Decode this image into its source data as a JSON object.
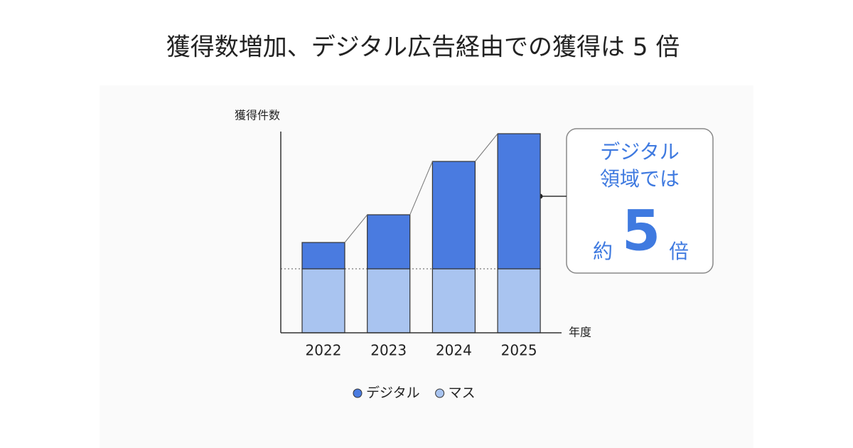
{
  "chart_data": {
    "type": "bar",
    "stacked": true,
    "title": "獲得数増加、デジタル広告経由での獲得は 5 倍",
    "y_label": "獲得件数",
    "x_label": "年度",
    "categories": [
      "2022",
      "2023",
      "2024",
      "2025"
    ],
    "series": [
      {
        "name": "マス",
        "color": "#a9c4f0",
        "values": [
          90,
          90,
          90,
          90
        ]
      },
      {
        "name": "デジタル",
        "color": "#4a7be0",
        "values": [
          37,
          76,
          151,
          190
        ]
      }
    ],
    "ylim": [
      0,
      283
    ],
    "annotation": {
      "lines": [
        "デジタル",
        "領域では"
      ],
      "prefix": "約",
      "number": "5",
      "suffix": "倍"
    }
  }
}
